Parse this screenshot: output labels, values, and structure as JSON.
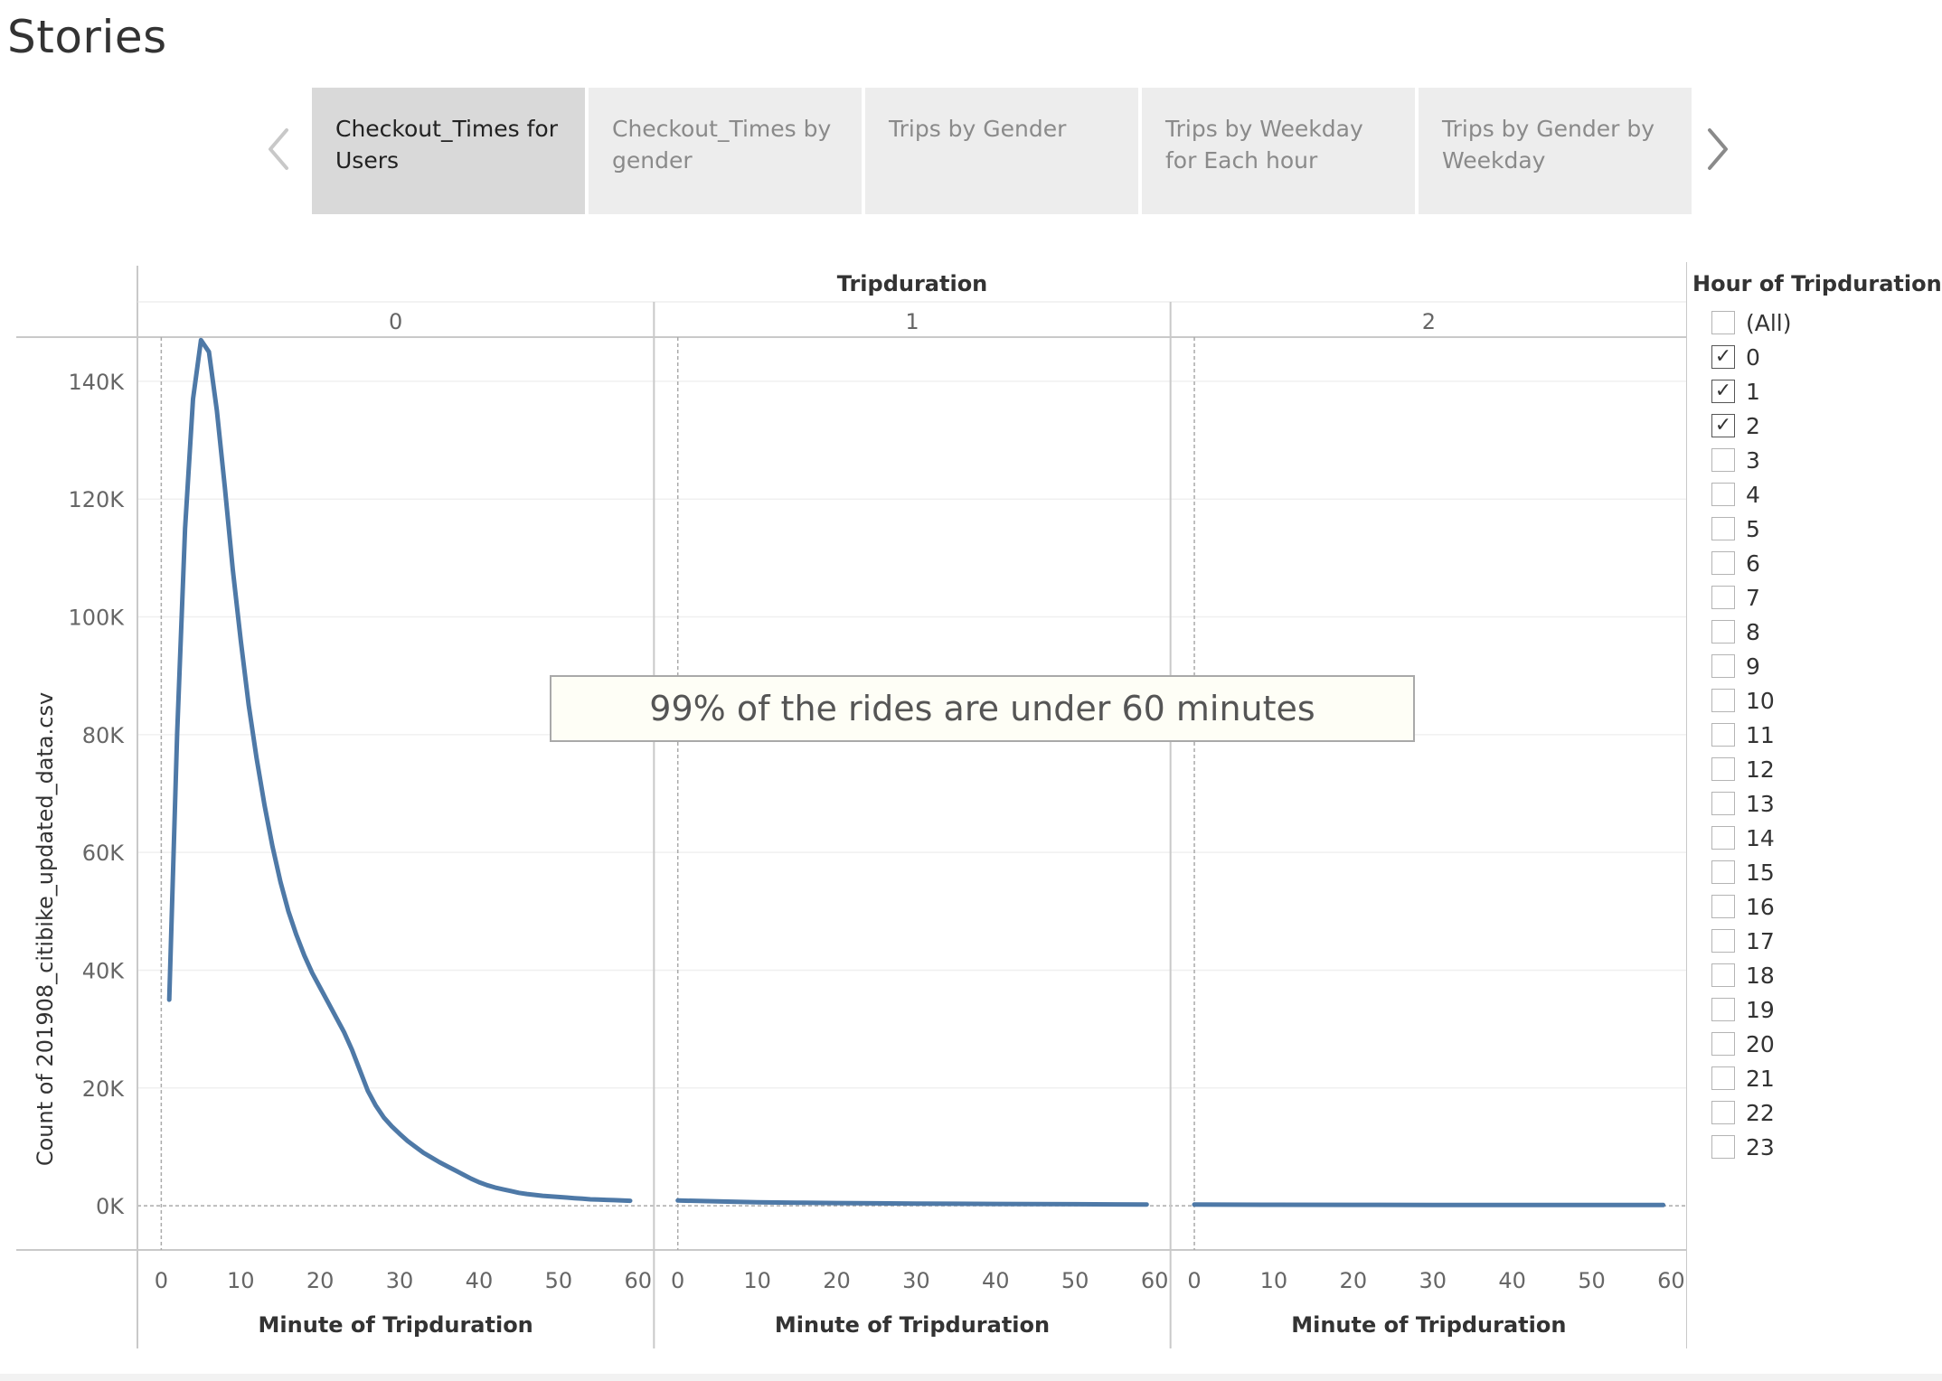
{
  "page": {
    "title": "Stories"
  },
  "story": {
    "prev_icon": "chevron-left-icon",
    "next_icon": "chevron-right-icon",
    "tabs": [
      {
        "label": "Checkout_Times for Users",
        "active": true
      },
      {
        "label": "Checkout_Times by gender",
        "active": false
      },
      {
        "label": "Trips by Gender",
        "active": false
      },
      {
        "label": "Trips by Weekday for Each hour",
        "active": false
      },
      {
        "label": "Trips by Gender by Weekday",
        "active": false
      }
    ]
  },
  "annotation": {
    "text": "99% of the rides are under 60 minutes"
  },
  "legend": {
    "title": "Hour of Tripduration",
    "items": [
      {
        "label": "(All)",
        "checked": false
      },
      {
        "label": "0",
        "checked": true
      },
      {
        "label": "1",
        "checked": true
      },
      {
        "label": "2",
        "checked": true
      },
      {
        "label": "3",
        "checked": false
      },
      {
        "label": "4",
        "checked": false
      },
      {
        "label": "5",
        "checked": false
      },
      {
        "label": "6",
        "checked": false
      },
      {
        "label": "7",
        "checked": false
      },
      {
        "label": "8",
        "checked": false
      },
      {
        "label": "9",
        "checked": false
      },
      {
        "label": "10",
        "checked": false
      },
      {
        "label": "11",
        "checked": false
      },
      {
        "label": "12",
        "checked": false
      },
      {
        "label": "13",
        "checked": false
      },
      {
        "label": "14",
        "checked": false
      },
      {
        "label": "15",
        "checked": false
      },
      {
        "label": "16",
        "checked": false
      },
      {
        "label": "17",
        "checked": false
      },
      {
        "label": "18",
        "checked": false
      },
      {
        "label": "19",
        "checked": false
      },
      {
        "label": "20",
        "checked": false
      },
      {
        "label": "21",
        "checked": false
      },
      {
        "label": "22",
        "checked": false
      },
      {
        "label": "23",
        "checked": false
      }
    ]
  },
  "chart_data": {
    "type": "line",
    "column_header_title": "Tripduration",
    "ylabel": "Count of 201908_citibike_updated_data.csv",
    "xlabel": "Minute of Tripduration",
    "ylim": [
      -7500,
      147500
    ],
    "yticks": [
      0,
      20000,
      40000,
      60000,
      80000,
      100000,
      120000,
      140000
    ],
    "ytick_labels": [
      "0K",
      "20K",
      "40K",
      "60K",
      "80K",
      "100K",
      "120K",
      "140K"
    ],
    "xlim": [
      -3,
      62
    ],
    "xticks": [
      0,
      10,
      20,
      30,
      40,
      50,
      60
    ],
    "line_color": "#4e79a7",
    "panels": [
      {
        "label": "0",
        "series": [
          {
            "x": [
              1,
              2,
              3,
              4,
              5,
              6,
              7,
              8,
              9,
              10,
              11,
              12,
              13,
              14,
              15,
              16,
              17,
              18,
              19,
              20,
              21,
              22,
              23,
              24,
              25,
              26,
              27,
              28,
              29,
              30,
              31,
              32,
              33,
              34,
              35,
              36,
              37,
              38,
              39,
              40,
              41,
              42,
              43,
              44,
              45,
              46,
              47,
              48,
              49,
              50,
              51,
              52,
              53,
              54,
              55,
              56,
              57,
              58,
              59
            ],
            "values": [
              35000,
              80000,
              115000,
              137000,
              147000,
              145000,
              135000,
              122000,
              108000,
              96000,
              85000,
              76000,
              68000,
              61000,
              55000,
              50000,
              46000,
              42500,
              39500,
              37000,
              34500,
              32000,
              29500,
              26500,
              23000,
              19500,
              17000,
              15000,
              13500,
              12200,
              11000,
              10000,
              9000,
              8200,
              7400,
              6700,
              6000,
              5300,
              4600,
              4000,
              3500,
              3100,
              2800,
              2500,
              2200,
              2000,
              1850,
              1700,
              1600,
              1500,
              1400,
              1300,
              1200,
              1100,
              1050,
              1000,
              950,
              900,
              850
            ]
          }
        ]
      },
      {
        "label": "1",
        "series": [
          {
            "x": [
              0,
              5,
              10,
              15,
              20,
              25,
              30,
              35,
              40,
              45,
              50,
              55,
              59
            ],
            "values": [
              900,
              750,
              600,
              520,
              460,
              420,
              380,
              340,
              310,
              280,
              260,
              240,
              220
            ]
          }
        ]
      },
      {
        "label": "2",
        "series": [
          {
            "x": [
              0,
              10,
              20,
              30,
              40,
              50,
              59
            ],
            "values": [
              200,
              180,
              160,
              150,
              140,
              130,
              120
            ]
          }
        ]
      }
    ]
  }
}
